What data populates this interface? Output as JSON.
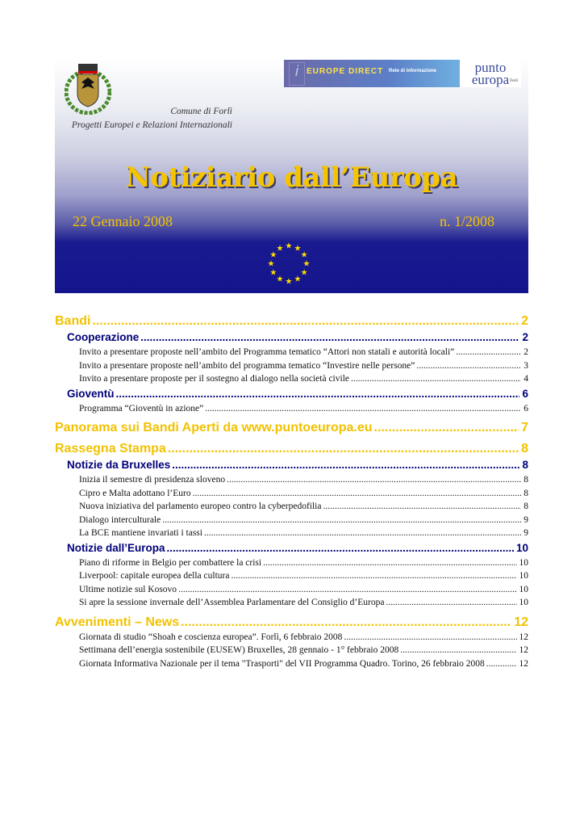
{
  "header": {
    "org_line1": "Comune di Forlì",
    "org_line2": "Progetti Europei e Relazioni Internazionali",
    "europe_direct_logo": "EUROPE DIRECT",
    "network_label": "Rete di Informazione",
    "punto_europa_logo": "punto europa",
    "punto_europa_city": "Forlì",
    "title": "Notiziario dall’Europa",
    "date": "22 Gennaio 2008",
    "issue": "n. 1/2008"
  },
  "colors": {
    "heading1": "#f2c200",
    "heading2": "#00007a",
    "banner_blue": "#14148c"
  },
  "toc": [
    {
      "level": 1,
      "text": "Bandi",
      "page": "2"
    },
    {
      "level": 2,
      "text": "Cooperazione",
      "page": "2"
    },
    {
      "level": 3,
      "text": "Invito a presentare proposte nell’ambito del Programma tematico “Attori non statali e autorità locali”",
      "page": "2"
    },
    {
      "level": 3,
      "text": "Invito a presentare proposte nell’ambito del programma tematico “Investire nelle persone”",
      "page": "3"
    },
    {
      "level": 3,
      "text": "Invito a presentare proposte  per il sostegno al dialogo nella società civile",
      "page": "4"
    },
    {
      "level": 2,
      "text": "Gioventù",
      "page": "6"
    },
    {
      "level": 3,
      "text": "Programma  “Gioventù in azione”",
      "page": "6"
    },
    {
      "level": 1,
      "text": "Panorama sui Bandi Aperti da  www.puntoeuropa.eu",
      "page": "7"
    },
    {
      "level": 1,
      "text": "Rassegna Stampa",
      "page": "8"
    },
    {
      "level": 2,
      "text": "Notizie da Bruxelles",
      "page": "8"
    },
    {
      "level": 3,
      "text": "Inizia il semestre di presidenza sloveno",
      "page": "8"
    },
    {
      "level": 3,
      "text": "Cipro e Malta adottano l’Euro",
      "page": "8"
    },
    {
      "level": 3,
      "text": "Nuova iniziativa del parlamento europeo  contro la cyberpedofilia",
      "page": "8"
    },
    {
      "level": 3,
      "text": "Dialogo interculturale",
      "page": "9"
    },
    {
      "level": 3,
      "text": "La BCE mantiene invariati i tassi",
      "page": "9"
    },
    {
      "level": 2,
      "text": "Notizie dall’Europa",
      "page": "10"
    },
    {
      "level": 3,
      "text": "Piano di riforme in Belgio per combattere la crisi",
      "page": "10"
    },
    {
      "level": 3,
      "text": "Liverpool: capitale europea della cultura",
      "page": "10"
    },
    {
      "level": 3,
      "text": "Ultime notizie sul Kosovo",
      "page": "10"
    },
    {
      "level": 3,
      "text": "Si apre la sessione invernale  dell’Assemblea Parlamentare del Consiglio d’Europa",
      "page": "10"
    },
    {
      "level": 1,
      "text": "Avvenimenti – News",
      "page": "12"
    },
    {
      "level": 3,
      "text": "Giornata di studio “Shoah e coscienza europea”.  Forlì, 6 febbraio 2008",
      "page": "12"
    },
    {
      "level": 3,
      "text": "Settimana dell’energia sostenibile (EUSEW)  Bruxelles, 28 gennaio - 1° febbraio 2008",
      "page": "12"
    },
    {
      "level": 3,
      "text": "Giornata Informativa Nazionale per il tema \"Trasporti\" del VII Programma Quadro. Torino, 26 febbraio 2008",
      "page": "12"
    }
  ]
}
